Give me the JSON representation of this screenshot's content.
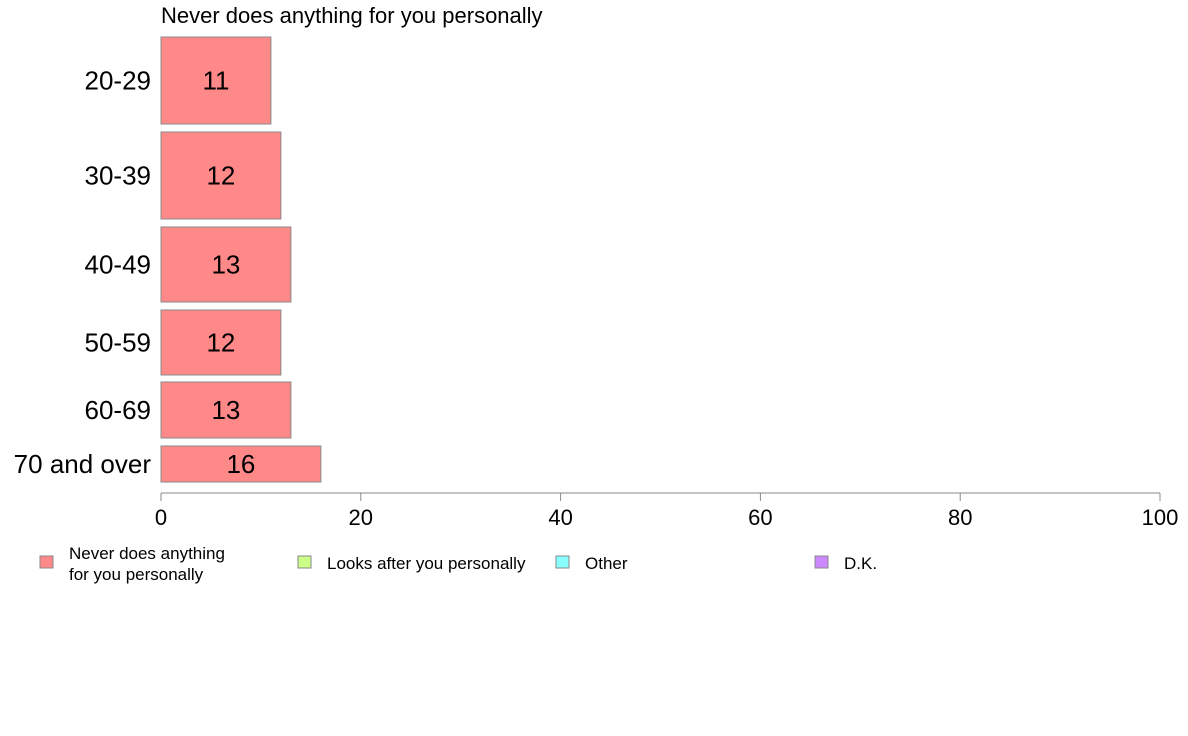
{
  "chart_data": {
    "type": "bar",
    "orientation": "horizontal",
    "title": "Never does anything for you personally",
    "categories": [
      "20-29",
      "30-39",
      "40-49",
      "50-59",
      "60-69",
      "70 and over"
    ],
    "series": [
      {
        "name": "Never does anything for you personally",
        "values": [
          11,
          12,
          13,
          12,
          13,
          16
        ]
      }
    ],
    "xlim": [
      0,
      100
    ],
    "xticks": [
      0,
      20,
      40,
      60,
      80,
      100
    ],
    "grid": false,
    "legend": {
      "placement": "bottom",
      "entries": [
        {
          "label": "Never does anything for you personally",
          "lines": [
            "Never does anything",
            "for you personally"
          ],
          "color": "#ff8888"
        },
        {
          "label": "Looks after you personally",
          "lines": [
            "Looks after you personally"
          ],
          "color": "#ccff88"
        },
        {
          "label": "Other",
          "lines": [
            "Other"
          ],
          "color": "#88ffff"
        },
        {
          "label": "D.K.",
          "lines": [
            "D.K."
          ],
          "color": "#cc88ff"
        }
      ]
    },
    "colors": {
      "bar_fill": "#ff8888",
      "bar_stroke": "#888888",
      "axis": "#888888"
    }
  }
}
